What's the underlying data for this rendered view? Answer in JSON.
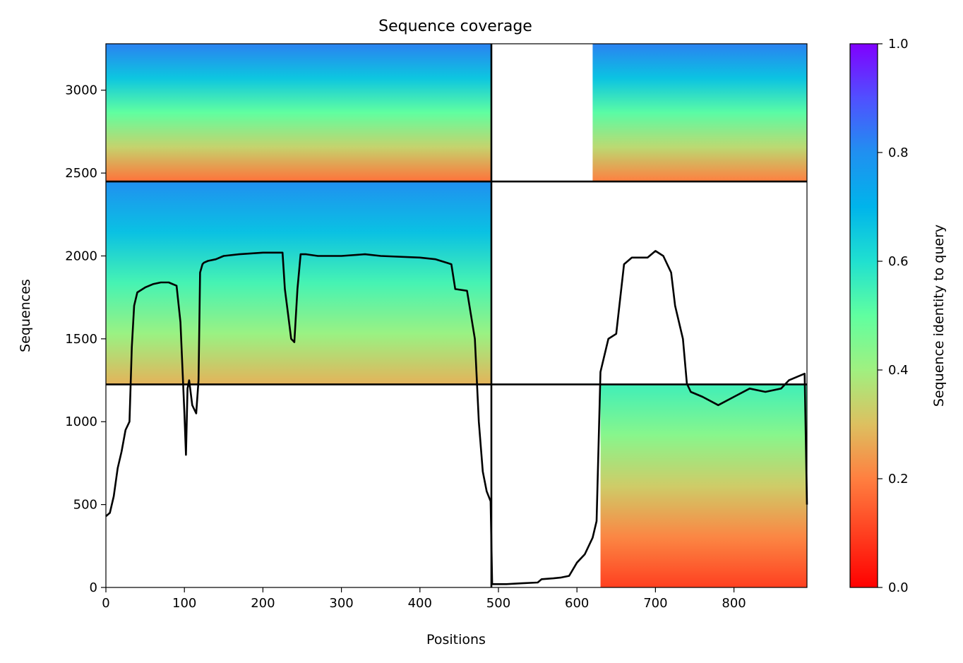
{
  "chart_data": {
    "type": "heatmap",
    "title": "Sequence coverage",
    "xlabel": "Positions",
    "ylabel": "Sequences",
    "xlim": [
      0,
      893
    ],
    "ylim": [
      0,
      3280
    ],
    "xticks": [
      0,
      100,
      200,
      300,
      400,
      500,
      600,
      700,
      800
    ],
    "yticks": [
      0,
      500,
      1000,
      1500,
      2000,
      2500,
      3000
    ],
    "colorbar": {
      "label": "Sequence identity to query",
      "range": [
        0.0,
        1.0
      ],
      "ticks": [
        "0.0",
        "0.2",
        "0.4",
        "0.6",
        "0.8",
        "1.0"
      ],
      "colormap": "rainbow_r",
      "colors": [
        "#ff0000",
        "#ff7f40",
        "#7fff80",
        "#00b4eb",
        "#8000ff"
      ]
    },
    "block_boundaries": {
      "x": [
        491
      ],
      "y": [
        1225,
        2449
      ]
    },
    "coverage_regions": [
      {
        "name": "block-1-1",
        "x": [
          0,
          491
        ],
        "y": [
          1225,
          2449
        ],
        "identity_bottom": 0.28,
        "identity_top": 0.8
      },
      {
        "name": "block-2-1",
        "x": [
          0,
          491
        ],
        "y": [
          2449,
          3280
        ],
        "identity_bottom": 0.18,
        "identity_top": 0.82
      },
      {
        "name": "block-2-2",
        "x": [
          620,
          893
        ],
        "y": [
          2449,
          3280
        ],
        "identity_bottom": 0.2,
        "identity_top": 0.82
      },
      {
        "name": "block-0-2",
        "x": [
          630,
          893
        ],
        "y": [
          0,
          1225
        ],
        "identity_bottom": 0.1,
        "identity_top": 0.55
      }
    ],
    "line_series": {
      "color": "#000000",
      "x": [
        0,
        5,
        10,
        15,
        20,
        25,
        30,
        33,
        36,
        40,
        50,
        60,
        70,
        80,
        90,
        95,
        100,
        102,
        104,
        106,
        110,
        115,
        118,
        120,
        123,
        125,
        130,
        140,
        150,
        170,
        200,
        225,
        228,
        232,
        236,
        240,
        244,
        248,
        255,
        270,
        300,
        330,
        350,
        400,
        420,
        440,
        445,
        460,
        470,
        475,
        480,
        485,
        490,
        492,
        495,
        510,
        530,
        550,
        555,
        570,
        580,
        590,
        600,
        610,
        620,
        625,
        630,
        640,
        650,
        660,
        670,
        690,
        700,
        710,
        720,
        725,
        735,
        740,
        745,
        760,
        780,
        800,
        820,
        840,
        860,
        870,
        890,
        893
      ],
      "y": [
        430,
        450,
        550,
        720,
        820,
        950,
        1000,
        1450,
        1700,
        1780,
        1810,
        1830,
        1840,
        1840,
        1820,
        1600,
        1050,
        800,
        1200,
        1250,
        1100,
        1050,
        1250,
        1900,
        1950,
        1960,
        1970,
        1980,
        2000,
        2010,
        2020,
        2020,
        1800,
        1650,
        1500,
        1480,
        1800,
        2010,
        2010,
        2000,
        2000,
        2010,
        2000,
        1990,
        1980,
        1950,
        1800,
        1790,
        1500,
        1000,
        700,
        580,
        520,
        20,
        20,
        20,
        25,
        30,
        50,
        55,
        60,
        70,
        150,
        200,
        300,
        400,
        1300,
        1500,
        1530,
        1950,
        1990,
        1990,
        2030,
        2000,
        1900,
        1700,
        1500,
        1230,
        1180,
        1150,
        1100,
        1150,
        1200,
        1180,
        1200,
        1250,
        1290,
        500
      ]
    }
  }
}
